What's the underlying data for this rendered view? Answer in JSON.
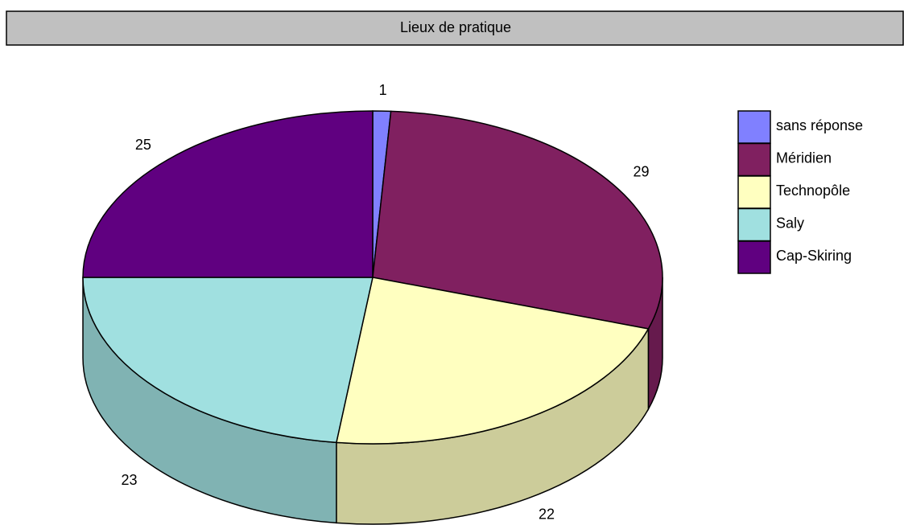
{
  "chart_data": {
    "type": "pie",
    "title": "Lieux de pratique",
    "categories": [
      "sans réponse",
      "Méridien",
      "Technopôle",
      "Saly",
      "Cap-Skiring"
    ],
    "values": [
      1,
      29,
      22,
      23,
      25
    ],
    "colors": [
      "#8080ff",
      "#802060",
      "#ffffc0",
      "#a0e0e0",
      "#600080"
    ],
    "legend": "right"
  }
}
